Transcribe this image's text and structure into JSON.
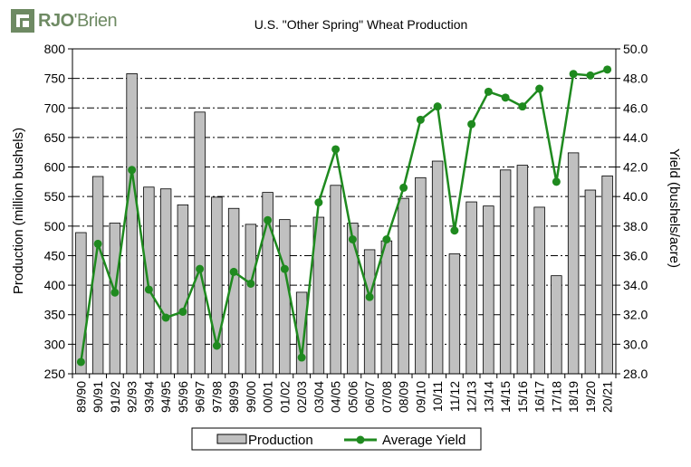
{
  "logo": {
    "text_main": "RJO",
    "text_rest": "Brien",
    "apostrophe": "'"
  },
  "chart_data": {
    "type": "bar",
    "title": "U.S. \"Other Spring\" Wheat Production",
    "categories": [
      "89/90",
      "90/91",
      "91/92",
      "92/93",
      "93/94",
      "94/95",
      "95/96",
      "96/97",
      "97/98",
      "98/99",
      "99/00",
      "00/01",
      "01/02",
      "02/03",
      "03/04",
      "04/05",
      "05/06",
      "06/07",
      "07/08",
      "08/09",
      "09/10",
      "10/11",
      "11/12",
      "12/13",
      "13/14",
      "14/15",
      "15/16",
      "16/17",
      "17/18",
      "18/19",
      "19/20",
      "20/21"
    ],
    "series": [
      {
        "name": "Production",
        "kind": "bar",
        "axis": "left",
        "color": "#c0c0c0",
        "values": [
          489,
          584,
          505,
          758,
          566,
          563,
          536,
          693,
          549,
          530,
          503,
          557,
          511,
          388,
          515,
          569,
          505,
          460,
          475,
          547,
          582,
          610,
          453,
          541,
          534,
          595,
          603,
          532,
          416,
          624,
          561,
          585
        ]
      },
      {
        "name": "Average Yield",
        "kind": "line",
        "axis": "right",
        "color": "#1f8a1f",
        "values": [
          28.8,
          36.8,
          33.5,
          41.8,
          33.7,
          31.8,
          32.2,
          35.1,
          29.9,
          34.9,
          34.1,
          38.4,
          35.1,
          29.1,
          39.6,
          43.2,
          37.1,
          33.2,
          37.1,
          40.6,
          45.2,
          46.1,
          37.7,
          44.9,
          47.1,
          46.7,
          46.1,
          47.3,
          41.0,
          48.3,
          48.2,
          48.6
        ]
      }
    ],
    "ylabel": "Production (million bushels)",
    "y2label": "Yield (bushels/acre)",
    "ylim": [
      250,
      800
    ],
    "y2lim": [
      28.0,
      50.0
    ],
    "yticks": [
      "250",
      "300",
      "350",
      "400",
      "450",
      "500",
      "550",
      "600",
      "650",
      "700",
      "750",
      "800"
    ],
    "y2ticks": [
      "28.0",
      "30.0",
      "32.0",
      "34.0",
      "36.0",
      "38.0",
      "40.0",
      "42.0",
      "44.0",
      "46.0",
      "48.0",
      "50.0"
    ],
    "grid": "horizontal dash-dot",
    "legend_position": "bottom"
  }
}
